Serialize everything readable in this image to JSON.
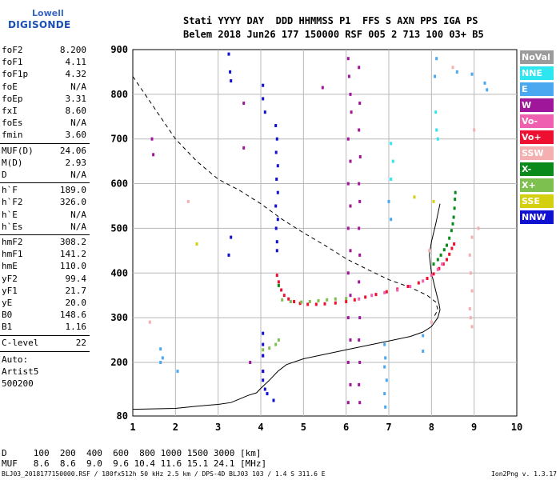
{
  "logo": {
    "line1": "Lowell",
    "line2": "DIGISONDE"
  },
  "header": {
    "line1": "Stati YYYY DAY  DDD HHMMSS P1  FFS S AXN PPS IGA PS",
    "line2": "Belem 2018 Jun26 177 150000 RSF 005 2 713 100 03+ B5"
  },
  "params": [
    {
      "name": "foF2",
      "value": "8.200"
    },
    {
      "name": "foF1",
      "value": "4.11"
    },
    {
      "name": "foF1p",
      "value": "4.32"
    },
    {
      "name": "foE",
      "value": "N/A"
    },
    {
      "name": "foEp",
      "value": "3.31"
    },
    {
      "name": "fxI",
      "value": "8.60"
    },
    {
      "name": "foEs",
      "value": "N/A"
    },
    {
      "name": "fmin",
      "value": "3.60"
    },
    {
      "name": "MUF(D)",
      "value": "24.06"
    },
    {
      "name": "M(D)",
      "value": "2.93"
    },
    {
      "name": "D",
      "value": "N/A"
    },
    {
      "name": "h`F",
      "value": "189.0"
    },
    {
      "name": "h`F2",
      "value": "326.0"
    },
    {
      "name": "h`E",
      "value": "N/A"
    },
    {
      "name": "h`Es",
      "value": "N/A"
    },
    {
      "name": "hmF2",
      "value": "308.2"
    },
    {
      "name": "hmF1",
      "value": "141.2"
    },
    {
      "name": "hmE",
      "value": "110.0"
    },
    {
      "name": "yF2",
      "value": "99.4"
    },
    {
      "name": "yF1",
      "value": "21.7"
    },
    {
      "name": "yE",
      "value": "20.0"
    },
    {
      "name": "B0",
      "value": "148.6"
    },
    {
      "name": "B1",
      "value": "1.16"
    },
    {
      "name": "C-level",
      "value": "22"
    }
  ],
  "auto": {
    "line1": "Auto:",
    "line2": "Artist5",
    "line3": "500200"
  },
  "legend": [
    {
      "label": "NoVal",
      "color": "#9b9b9b"
    },
    {
      "label": "NNE",
      "color": "#2ee6f0"
    },
    {
      "label": "E",
      "color": "#4aa8f0"
    },
    {
      "label": "W",
      "color": "#a0169a"
    },
    {
      "label": "Vo-",
      "color": "#f060b0"
    },
    {
      "label": "Vo+",
      "color": "#ee1030"
    },
    {
      "label": "SSW",
      "color": "#f4b0b0"
    },
    {
      "label": "X-",
      "color": "#0a8a1a"
    },
    {
      "label": "X+",
      "color": "#7ec050"
    },
    {
      "label": "SSE",
      "color": "#d4d010"
    },
    {
      "label": "NNW",
      "color": "#1010d0"
    }
  ],
  "footer": {
    "row1": "D     100  200  400  600  800 1000 1500 3000 [km]",
    "row2": "MUF   8.6  8.6  9.0  9.6 10.4 11.6 15.1 24.1 [MHz]"
  },
  "bottom": {
    "left": "BLJ03_2018177150000.RSF / 180fx512h 50 kHz 2.5 km / DPS-4D BLJ03 103 / 1.4 S 311.6 E",
    "right": "Ion2Png v. 1.3.17"
  },
  "chart_data": {
    "type": "scatter",
    "xlabel": "",
    "ylabel": "",
    "xlim": [
      1,
      10
    ],
    "ylim": [
      80,
      900
    ],
    "xticks": [
      1,
      2,
      3,
      4,
      5,
      6,
      7,
      8,
      9,
      10
    ],
    "yticks": [
      80,
      200,
      300,
      400,
      500,
      600,
      700,
      800,
      900
    ],
    "grid": true,
    "legend_position": "right",
    "series": [
      {
        "name": "Vo+",
        "color": "#ee1030",
        "points": [
          [
            4.38,
            395
          ],
          [
            4.42,
            380
          ],
          [
            4.48,
            362
          ],
          [
            4.55,
            350
          ],
          [
            4.65,
            342
          ],
          [
            4.78,
            336
          ],
          [
            4.92,
            332
          ],
          [
            5.1,
            330
          ],
          [
            5.3,
            330
          ],
          [
            5.5,
            331
          ],
          [
            5.75,
            333
          ],
          [
            6.0,
            336
          ],
          [
            6.2,
            340
          ],
          [
            6.45,
            346
          ],
          [
            6.7,
            352
          ],
          [
            6.95,
            358
          ],
          [
            7.2,
            364
          ],
          [
            7.45,
            370
          ],
          [
            7.7,
            378
          ],
          [
            7.9,
            388
          ],
          [
            8.05,
            398
          ],
          [
            8.18,
            410
          ],
          [
            8.28,
            420
          ],
          [
            8.36,
            430
          ],
          [
            8.42,
            442
          ],
          [
            8.48,
            455
          ],
          [
            8.53,
            465
          ]
        ]
      },
      {
        "name": "Vo-",
        "color": "#f060b0",
        "points": [
          [
            6.3,
            342
          ],
          [
            6.6,
            350
          ],
          [
            6.9,
            356
          ],
          [
            7.2,
            362
          ],
          [
            7.5,
            370
          ],
          [
            7.8,
            382
          ],
          [
            8.0,
            395
          ],
          [
            8.15,
            408
          ],
          [
            8.25,
            420
          ]
        ]
      },
      {
        "name": "X-",
        "color": "#0a8a1a",
        "points": [
          [
            4.42,
            372
          ],
          [
            8.05,
            420
          ],
          [
            8.15,
            430
          ],
          [
            8.22,
            440
          ],
          [
            8.3,
            452
          ],
          [
            8.36,
            462
          ],
          [
            8.42,
            478
          ],
          [
            8.47,
            495
          ],
          [
            8.5,
            510
          ],
          [
            8.52,
            525
          ],
          [
            8.54,
            545
          ],
          [
            8.55,
            565
          ],
          [
            8.56,
            580
          ]
        ]
      },
      {
        "name": "X+",
        "color": "#7ec050",
        "points": [
          [
            4.5,
            340
          ],
          [
            4.7,
            336
          ],
          [
            4.95,
            335
          ],
          [
            5.15,
            336
          ],
          [
            5.35,
            338
          ],
          [
            5.55,
            340
          ],
          [
            5.75,
            342
          ],
          [
            6.0,
            343
          ],
          [
            4.05,
            228
          ],
          [
            4.2,
            232
          ],
          [
            4.35,
            240
          ],
          [
            4.42,
            250
          ]
        ]
      },
      {
        "name": "W",
        "color": "#a0169a",
        "points": [
          [
            6.05,
            880
          ],
          [
            6.07,
            840
          ],
          [
            6.1,
            800
          ],
          [
            6.12,
            760
          ],
          [
            6.05,
            700
          ],
          [
            6.1,
            650
          ],
          [
            6.05,
            600
          ],
          [
            6.1,
            550
          ],
          [
            6.05,
            500
          ],
          [
            6.1,
            450
          ],
          [
            6.05,
            400
          ],
          [
            6.1,
            350
          ],
          [
            6.05,
            300
          ],
          [
            6.1,
            250
          ],
          [
            6.05,
            200
          ],
          [
            6.1,
            150
          ],
          [
            6.05,
            110
          ],
          [
            6.3,
            860
          ],
          [
            6.32,
            780
          ],
          [
            6.3,
            720
          ],
          [
            6.33,
            660
          ],
          [
            6.3,
            600
          ],
          [
            6.32,
            560
          ],
          [
            6.3,
            500
          ],
          [
            6.32,
            440
          ],
          [
            6.3,
            380
          ],
          [
            6.32,
            300
          ],
          [
            6.3,
            250
          ],
          [
            6.32,
            200
          ],
          [
            6.3,
            150
          ],
          [
            6.32,
            110
          ],
          [
            1.45,
            700
          ],
          [
            1.48,
            665
          ],
          [
            3.6,
            780
          ],
          [
            3.6,
            680
          ],
          [
            4.05,
            215
          ],
          [
            4.05,
            180
          ],
          [
            3.75,
            200
          ],
          [
            5.45,
            815
          ]
        ]
      },
      {
        "name": "NNW",
        "color": "#1010d0",
        "points": [
          [
            3.25,
            890
          ],
          [
            3.28,
            850
          ],
          [
            3.3,
            830
          ],
          [
            4.05,
            820
          ],
          [
            4.05,
            790
          ],
          [
            4.1,
            760
          ],
          [
            4.35,
            730
          ],
          [
            4.38,
            700
          ],
          [
            4.36,
            670
          ],
          [
            4.4,
            640
          ],
          [
            4.37,
            610
          ],
          [
            4.4,
            580
          ],
          [
            4.35,
            550
          ],
          [
            4.4,
            520
          ],
          [
            4.36,
            500
          ],
          [
            4.38,
            470
          ],
          [
            4.38,
            450
          ],
          [
            3.3,
            480
          ],
          [
            3.25,
            440
          ],
          [
            4.05,
            265
          ],
          [
            4.05,
            240
          ],
          [
            4.05,
            215
          ],
          [
            4.05,
            180
          ],
          [
            4.05,
            160
          ],
          [
            4.1,
            140
          ],
          [
            4.15,
            130
          ],
          [
            4.3,
            115
          ]
        ]
      },
      {
        "name": "E",
        "color": "#4aa8f0",
        "points": [
          [
            1.65,
            230
          ],
          [
            1.7,
            210
          ],
          [
            1.65,
            200
          ],
          [
            2.05,
            180
          ],
          [
            6.9,
            240
          ],
          [
            6.92,
            210
          ],
          [
            6.9,
            190
          ],
          [
            6.95,
            160
          ],
          [
            6.9,
            130
          ],
          [
            6.92,
            100
          ],
          [
            7.8,
            260
          ],
          [
            7.8,
            225
          ],
          [
            7.0,
            560
          ],
          [
            7.05,
            520
          ],
          [
            8.6,
            850
          ],
          [
            8.95,
            845
          ],
          [
            9.3,
            810
          ],
          [
            9.25,
            825
          ],
          [
            8.08,
            840
          ],
          [
            8.12,
            880
          ]
        ]
      },
      {
        "name": "NNE",
        "color": "#2ee6f0",
        "points": [
          [
            7.05,
            690
          ],
          [
            7.1,
            650
          ],
          [
            7.05,
            610
          ],
          [
            8.1,
            760
          ],
          [
            8.12,
            720
          ],
          [
            8.15,
            700
          ]
        ]
      },
      {
        "name": "SSW",
        "color": "#f4b0b0",
        "points": [
          [
            8.95,
            480
          ],
          [
            8.9,
            440
          ],
          [
            8.92,
            400
          ],
          [
            8.95,
            360
          ],
          [
            8.9,
            320
          ],
          [
            8.92,
            300
          ],
          [
            8.95,
            280
          ],
          [
            9.1,
            500
          ],
          [
            8.0,
            290
          ],
          [
            7.95,
            450
          ],
          [
            8.5,
            860
          ],
          [
            9.0,
            720
          ],
          [
            2.3,
            560
          ],
          [
            1.4,
            290
          ]
        ]
      },
      {
        "name": "SSE",
        "color": "#d4d010",
        "points": [
          [
            2.5,
            465
          ],
          [
            7.6,
            570
          ],
          [
            8.05,
            560
          ]
        ]
      }
    ],
    "curves": [
      {
        "name": "mufdash",
        "style": "dashed",
        "points": [
          [
            1.0,
            840
          ],
          [
            1.5,
            770
          ],
          [
            2.0,
            700
          ],
          [
            2.5,
            650
          ],
          [
            3.0,
            610
          ],
          [
            3.5,
            585
          ],
          [
            4.0,
            555
          ],
          [
            4.5,
            520
          ],
          [
            5.0,
            490
          ],
          [
            5.5,
            462
          ],
          [
            6.0,
            432
          ],
          [
            6.5,
            408
          ],
          [
            7.0,
            385
          ],
          [
            7.5,
            368
          ],
          [
            7.9,
            350
          ],
          [
            8.1,
            335
          ],
          [
            8.15,
            318
          ],
          [
            8.05,
            300
          ]
        ]
      },
      {
        "name": "profile",
        "style": "solid",
        "points": [
          [
            1.0,
            95
          ],
          [
            2.0,
            97
          ],
          [
            2.5,
            102
          ],
          [
            3.0,
            106
          ],
          [
            3.3,
            110
          ],
          [
            3.5,
            118
          ],
          [
            3.7,
            126
          ],
          [
            3.9,
            132
          ],
          [
            4.0,
            142
          ],
          [
            4.2,
            160
          ],
          [
            4.4,
            180
          ],
          [
            4.6,
            195
          ],
          [
            5.0,
            208
          ],
          [
            5.5,
            218
          ],
          [
            6.0,
            228
          ],
          [
            6.5,
            238
          ],
          [
            7.0,
            248
          ],
          [
            7.5,
            258
          ],
          [
            7.8,
            268
          ],
          [
            8.0,
            280
          ],
          [
            8.15,
            300
          ],
          [
            8.2,
            318
          ],
          [
            8.18,
            330
          ],
          [
            8.1,
            360
          ],
          [
            8.0,
            400
          ],
          [
            7.95,
            440
          ],
          [
            8.0,
            470
          ],
          [
            8.1,
            510
          ],
          [
            8.2,
            555
          ]
        ]
      }
    ]
  }
}
